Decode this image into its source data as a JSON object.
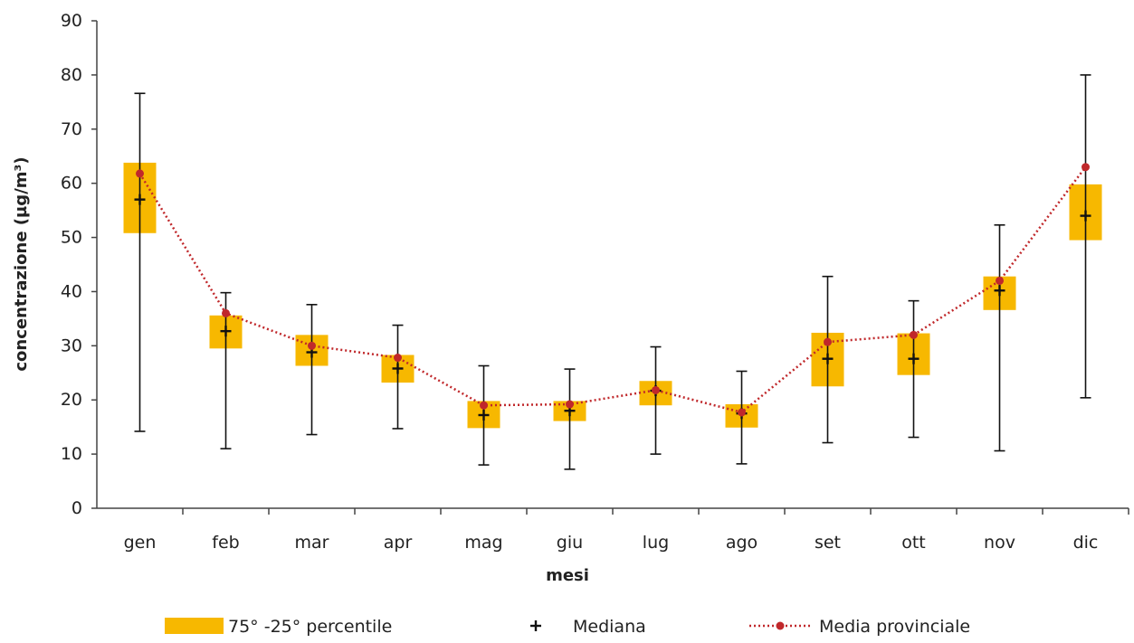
{
  "chart_data": {
    "type": "box",
    "categories": [
      "gen",
      "feb",
      "mar",
      "apr",
      "mag",
      "giu",
      "lug",
      "ago",
      "set",
      "ott",
      "nov",
      "dic"
    ],
    "series": [
      {
        "name": "75° -25° percentile",
        "kind": "iqr-box",
        "q1": [
          50.8,
          29.5,
          26.3,
          23.2,
          14.8,
          16.1,
          19.0,
          14.9,
          22.5,
          24.6,
          36.6,
          49.5
        ],
        "q3": [
          63.8,
          35.6,
          32.0,
          28.3,
          19.8,
          19.8,
          23.5,
          19.2,
          32.4,
          32.3,
          42.8,
          59.8
        ]
      },
      {
        "name": "Mediana",
        "kind": "median-marker",
        "values": [
          57.0,
          32.7,
          28.8,
          25.8,
          17.2,
          18.0,
          21.7,
          17.5,
          27.6,
          27.6,
          40.2,
          54.0
        ]
      },
      {
        "name": "Media provinciale",
        "kind": "mean-line",
        "values": [
          61.8,
          36.0,
          30.0,
          27.8,
          19.0,
          19.2,
          21.8,
          17.7,
          30.7,
          32.0,
          42.0,
          63.0
        ]
      }
    ],
    "whisker_min": [
      14.2,
      11.0,
      13.6,
      14.7,
      8.0,
      7.2,
      10.0,
      8.2,
      12.1,
      13.1,
      10.6,
      20.4
    ],
    "whisker_max": [
      76.6,
      39.8,
      37.6,
      33.8,
      26.3,
      25.7,
      29.8,
      25.3,
      42.8,
      38.3,
      52.3,
      80.0
    ],
    "xlabel": "mesi",
    "ylabel": "concentrazione (µg/m³)",
    "ylim": [
      0,
      90
    ],
    "yticks": [
      "0",
      "10",
      "20",
      "30",
      "40",
      "50",
      "60",
      "70",
      "80",
      "90"
    ],
    "grid": false,
    "legend_position": "bottom",
    "colors": {
      "box": "#F7B800",
      "median": "#111111",
      "mean": "#C0282B",
      "axis": "#444444"
    }
  }
}
